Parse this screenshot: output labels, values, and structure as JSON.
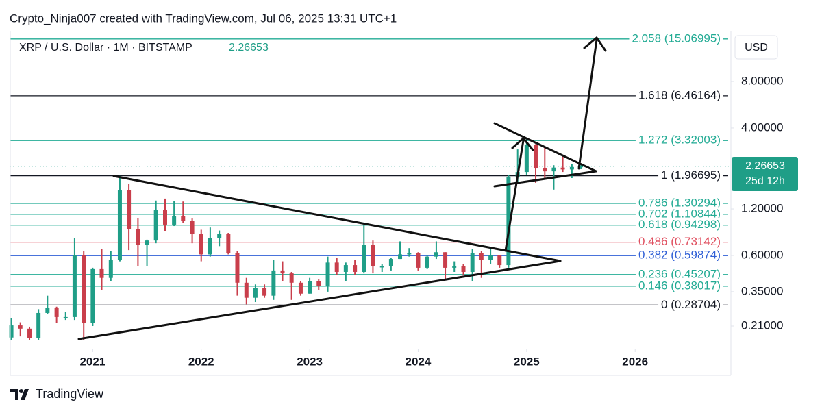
{
  "chart_data": {
    "type": "candlestick",
    "header": "Crypto_Ninja007 created with TradingView.com, Jul 06, 2025 13:31 UTC+1",
    "title": "XRP / U.S. Dollar · 1M · BITSTAMP",
    "last_price": 2.26653,
    "countdown": "25d 12h",
    "currency": "USD",
    "watermark": "TradingView",
    "up_color": "#1f9e87",
    "down_color": "#c93e4b",
    "log_scale": true,
    "xlim": [
      2020.24,
      2026.87
    ],
    "xticks": [
      2021,
      2022,
      2023,
      2024,
      2025,
      2026
    ],
    "ylim": [
      0.1485,
      17.0
    ],
    "yticks": [
      {
        "value": 8,
        "label": "8.00000"
      },
      {
        "value": 4,
        "label": "4.00000"
      },
      {
        "value": 1.2,
        "label": "1.20000"
      },
      {
        "value": 0.6,
        "label": "0.60000"
      },
      {
        "value": 0.35,
        "label": "0.35000"
      },
      {
        "value": 0.21,
        "label": "0.21000"
      }
    ],
    "levels": [
      {
        "label": "2.058 (15.06995)",
        "value": 15.06995,
        "color": "#22ab94"
      },
      {
        "label": "1.618 (6.46164)",
        "value": 6.46164,
        "color": "#131722"
      },
      {
        "label": "1.272 (3.32003)",
        "value": 3.32003,
        "color": "#22ab94"
      },
      {
        "label": "1 (1.96695)",
        "value": 1.96695,
        "color": "#131722"
      },
      {
        "label": "0.786 (1.30294)",
        "value": 1.30294,
        "color": "#22ab94"
      },
      {
        "label": "0.702 (1.10844)",
        "value": 1.10844,
        "color": "#22ab94"
      },
      {
        "label": "0.618 (0.94298)",
        "value": 0.94298,
        "color": "#22ab94"
      },
      {
        "label": "0.486 (0.73142)",
        "value": 0.73142,
        "color": "#e04f5f"
      },
      {
        "label": "0.382 (0.59874)",
        "value": 0.59874,
        "color": "#2f5fd6"
      },
      {
        "label": "0.236 (0.45207)",
        "value": 0.45207,
        "color": "#22ab94"
      },
      {
        "label": "0.146 (0.38017)",
        "value": 0.38017,
        "color": "#22ab94"
      },
      {
        "label": "0 (0.28704)",
        "value": 0.28704,
        "color": "#131722"
      }
    ],
    "x": [
      2020.25,
      2020.333,
      2020.417,
      2020.5,
      2020.583,
      2020.667,
      2020.75,
      2020.833,
      2020.917,
      2021,
      2021.083,
      2021.167,
      2021.25,
      2021.333,
      2021.417,
      2021.5,
      2021.583,
      2021.667,
      2021.75,
      2021.833,
      2021.917,
      2022,
      2022.083,
      2022.167,
      2022.25,
      2022.333,
      2022.417,
      2022.5,
      2022.583,
      2022.667,
      2022.75,
      2022.833,
      2022.917,
      2023,
      2023.083,
      2023.167,
      2023.25,
      2023.333,
      2023.417,
      2023.5,
      2023.583,
      2023.667,
      2023.75,
      2023.833,
      2023.917,
      2024,
      2024.083,
      2024.167,
      2024.25,
      2024.333,
      2024.417,
      2024.5,
      2024.583,
      2024.667,
      2024.75,
      2024.833,
      2024.917,
      2025,
      2025.083,
      2025.167,
      2025.25,
      2025.333,
      2025.417,
      2025.5
    ],
    "open": [
      0.177,
      0.212,
      0.202,
      0.175,
      0.255,
      0.274,
      0.24,
      0.24,
      0.6,
      0.22,
      0.49,
      0.43,
      0.56,
      1.59,
      0.89,
      0.7,
      0.75,
      1.18,
      0.95,
      1.08,
      1.0,
      0.83,
      0.61,
      0.78,
      0.83,
      0.62,
      0.4,
      0.32,
      0.37,
      0.33,
      0.48,
      0.46,
      0.4,
      0.34,
      0.41,
      0.38,
      0.54,
      0.47,
      0.52,
      0.47,
      0.7,
      0.51,
      0.51,
      0.57,
      0.61,
      0.62,
      0.5,
      0.59,
      0.63,
      0.5,
      0.51,
      0.47,
      0.62,
      0.56,
      0.6,
      0.52,
      1.94,
      2.08,
      3.1,
      2.19,
      2.1,
      2.22,
      2.16,
      2.24
    ],
    "high": [
      0.235,
      0.222,
      0.208,
      0.27,
      0.33,
      0.28,
      0.26,
      0.78,
      0.64,
      0.5,
      0.66,
      0.64,
      1.96,
      1.75,
      1.05,
      0.76,
      1.36,
      1.4,
      1.35,
      1.34,
      1.04,
      0.88,
      0.91,
      0.87,
      0.84,
      0.64,
      0.43,
      0.39,
      0.39,
      0.56,
      0.55,
      0.47,
      0.41,
      0.43,
      0.42,
      0.59,
      0.58,
      0.54,
      0.56,
      0.94,
      0.75,
      0.53,
      0.58,
      0.74,
      0.67,
      0.63,
      0.6,
      0.74,
      0.63,
      0.55,
      0.53,
      0.66,
      0.64,
      0.66,
      0.6,
      1.98,
      2.91,
      3.4,
      3.15,
      3.0,
      2.3,
      2.65,
      2.34,
      2.3
    ],
    "low": [
      0.17,
      0.18,
      0.17,
      0.17,
      0.25,
      0.22,
      0.23,
      0.23,
      0.17,
      0.21,
      0.36,
      0.41,
      0.55,
      0.65,
      0.51,
      0.51,
      0.72,
      0.86,
      0.93,
      0.97,
      0.72,
      0.55,
      0.59,
      0.69,
      0.61,
      0.33,
      0.29,
      0.3,
      0.32,
      0.31,
      0.41,
      0.31,
      0.33,
      0.34,
      0.36,
      0.35,
      0.45,
      0.41,
      0.45,
      0.46,
      0.46,
      0.47,
      0.48,
      0.57,
      0.59,
      0.48,
      0.49,
      0.57,
      0.42,
      0.47,
      0.45,
      0.41,
      0.43,
      0.53,
      0.5,
      0.5,
      1.77,
      2.0,
      1.77,
      1.9,
      1.6,
      2.08,
      1.9,
      2.17
    ],
    "close": [
      0.212,
      0.202,
      0.175,
      0.255,
      0.274,
      0.24,
      0.24,
      0.6,
      0.22,
      0.49,
      0.43,
      0.56,
      1.59,
      0.89,
      0.7,
      0.75,
      1.18,
      0.95,
      1.08,
      1.0,
      0.83,
      0.61,
      0.78,
      0.83,
      0.62,
      0.4,
      0.32,
      0.37,
      0.33,
      0.48,
      0.46,
      0.4,
      0.34,
      0.41,
      0.38,
      0.54,
      0.47,
      0.52,
      0.47,
      0.7,
      0.51,
      0.51,
      0.57,
      0.61,
      0.62,
      0.5,
      0.59,
      0.63,
      0.5,
      0.51,
      0.47,
      0.62,
      0.56,
      0.6,
      0.52,
      1.94,
      2.08,
      3.1,
      2.19,
      2.1,
      2.22,
      2.16,
      2.24,
      2.26653
    ]
  }
}
